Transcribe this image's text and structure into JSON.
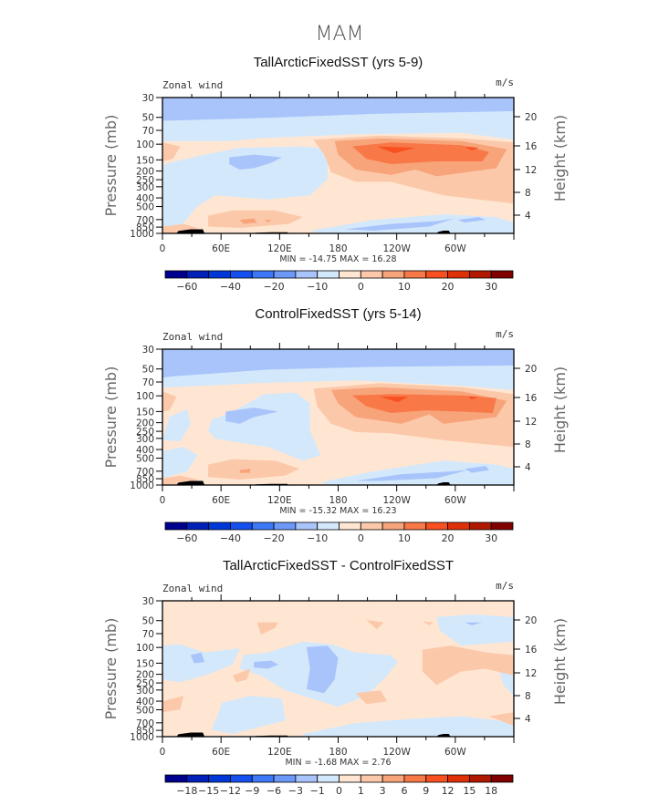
{
  "figure_title": "MAM",
  "chart_data": [
    {
      "type": "heatmap",
      "subtype": "filled-contour latitude-pressure cross section",
      "title": "TallArcticFixedSST (yrs 5-9)",
      "left_label": "Zonal wind",
      "right_label": "m/s",
      "ylabel": "Pressure (mb)",
      "ylabel_right": "Height (km)",
      "xlabel": "",
      "x_ticks": [
        "0",
        "60E",
        "120E",
        "180",
        "120W",
        "60W"
      ],
      "y_ticks": [
        "30",
        "50",
        "70",
        "100",
        "150",
        "200",
        "250",
        "300",
        "400",
        "500",
        "700",
        "850",
        "1000"
      ],
      "y_ticks_right": [
        "20",
        "16",
        "12",
        "8",
        "4"
      ],
      "ylim": [
        1000,
        30
      ],
      "min": "-14.75",
      "max": "16.28",
      "min_label": "MIN = -14.75   MAX =  16.28",
      "contour_levels": [
        -60,
        -50,
        -40,
        -30,
        -20,
        -15,
        -10,
        -5,
        0,
        5,
        10,
        15,
        20,
        25,
        30
      ],
      "colorbar_labels": [
        "-60",
        "-40",
        "-20",
        "-10",
        "0",
        "10",
        "20",
        "30"
      ],
      "colorbar_label_indices": [
        0,
        2,
        4,
        6,
        8,
        10,
        12,
        14
      ],
      "features": [
        {
          "desc": "easterlies aloft (30-50 mb)",
          "level_band": "-10 to -5"
        },
        {
          "desc": "westerly jet core near 100-150 mb, 150E-60W",
          "peak_ms": 16.28
        },
        {
          "desc": "weak easterlies 150-300 mb near 60E-150E",
          "level_band": "-10 to -5"
        },
        {
          "desc": "low-level easterlies near 700-850 mb, 150W-30W",
          "level_band": "-10 to -5"
        }
      ]
    },
    {
      "type": "heatmap",
      "subtype": "filled-contour latitude-pressure cross section",
      "title": "ControlFixedSST (yrs 5-14)",
      "left_label": "Zonal wind",
      "right_label": "m/s",
      "ylabel": "Pressure (mb)",
      "ylabel_right": "Height (km)",
      "xlabel": "",
      "x_ticks": [
        "0",
        "60E",
        "120E",
        "180",
        "120W",
        "60W"
      ],
      "y_ticks": [
        "30",
        "50",
        "70",
        "100",
        "150",
        "200",
        "250",
        "300",
        "400",
        "500",
        "700",
        "850",
        "1000"
      ],
      "y_ticks_right": [
        "20",
        "16",
        "12",
        "8",
        "4"
      ],
      "ylim": [
        1000,
        30
      ],
      "min": "-15.32",
      "max": "16.23",
      "min_label": "MIN = -15.32   MAX =  16.23",
      "contour_levels": [
        -60,
        -50,
        -40,
        -30,
        -20,
        -15,
        -10,
        -5,
        0,
        5,
        10,
        15,
        20,
        25,
        30
      ],
      "colorbar_labels": [
        "-60",
        "-40",
        "-20",
        "-10",
        "0",
        "10",
        "20",
        "30"
      ],
      "colorbar_label_indices": [
        0,
        2,
        4,
        6,
        8,
        10,
        12,
        14
      ]
    },
    {
      "type": "heatmap",
      "subtype": "filled-contour latitude-pressure cross section (difference)",
      "title": "TallArcticFixedSST - ControlFixedSST",
      "left_label": "Zonal wind",
      "right_label": "m/s",
      "ylabel": "Pressure (mb)",
      "ylabel_right": "Height (km)",
      "xlabel": "",
      "x_ticks": [
        "0",
        "60E",
        "120E",
        "180",
        "120W",
        "60W"
      ],
      "y_ticks": [
        "30",
        "50",
        "70",
        "100",
        "150",
        "200",
        "250",
        "300",
        "400",
        "500",
        "700",
        "850",
        "1000"
      ],
      "y_ticks_right": [
        "20",
        "16",
        "12",
        "8",
        "4"
      ],
      "ylim": [
        1000,
        30
      ],
      "min": "-1.68",
      "max": "2.76",
      "min_label": "MIN =   -1.68   MAX =    2.76",
      "contour_levels": [
        -18,
        -15,
        -12,
        -9,
        -6,
        -3,
        -1,
        0,
        1,
        3,
        6,
        9,
        12,
        15,
        18
      ],
      "colorbar_labels": [
        "-18",
        "-15",
        "-12",
        "-9",
        "-6",
        "-3",
        "-1",
        "0",
        "1",
        "3",
        "6",
        "9",
        "12",
        "15",
        "18"
      ],
      "colorbar_label_indices": [
        0,
        1,
        2,
        3,
        4,
        5,
        6,
        7,
        8,
        9,
        10,
        11,
        12,
        13,
        14
      ]
    }
  ],
  "colormap": [
    "#00008f",
    "#0020b8",
    "#0038d8",
    "#1450f0",
    "#3c78f8",
    "#6c98f8",
    "#a8c4fa",
    "#d4e8fc",
    "#fee6d2",
    "#fcc8aa",
    "#f8a47a",
    "#f87848",
    "#f85020",
    "#e03008",
    "#b01800",
    "#800000"
  ],
  "topography_color": "#000000"
}
